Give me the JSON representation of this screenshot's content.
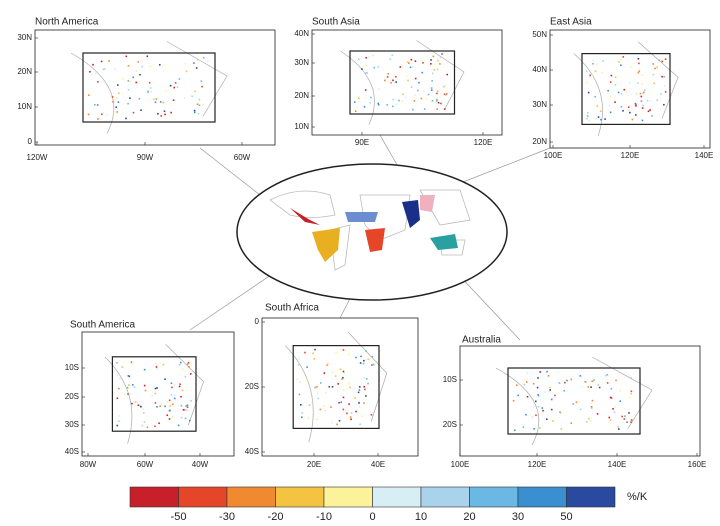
{
  "panels": [
    {
      "title": "North America",
      "xticks": [
        "120W",
        "90W",
        "60W"
      ],
      "yticks": [
        "30N",
        "20N",
        "10N",
        "0"
      ]
    },
    {
      "title": "South Asia",
      "xticks": [
        "90E",
        "120E"
      ],
      "yticks": [
        "40N",
        "30N",
        "20N",
        "10N"
      ]
    },
    {
      "title": "East Asia",
      "xticks": [
        "100E",
        "120E",
        "140E"
      ],
      "yticks": [
        "50N",
        "40N",
        "30N",
        "20N"
      ]
    },
    {
      "title": "South America",
      "xticks": [
        "80W",
        "60W",
        "40W"
      ],
      "yticks": [
        "10S",
        "20S",
        "30S",
        "40S"
      ]
    },
    {
      "title": "South Africa",
      "xticks": [
        "20E",
        "40E"
      ],
      "yticks": [
        "0",
        "20S",
        "40S"
      ]
    },
    {
      "title": "Australia",
      "xticks": [
        "100E",
        "120E",
        "140E",
        "160E"
      ],
      "yticks": [
        "10S",
        "20S"
      ]
    }
  ],
  "colorbar": {
    "labels": [
      -50,
      -30,
      -20,
      -10,
      0,
      10,
      20,
      30,
      50
    ],
    "unit": "%/K",
    "colors": [
      "#c8202a",
      "#e5462a",
      "#f08a30",
      "#f5c342",
      "#fbf29a",
      "#d8eef5",
      "#a9d3ea",
      "#6ab8e3",
      "#3a8fd0",
      "#2a4aa0"
    ]
  }
}
